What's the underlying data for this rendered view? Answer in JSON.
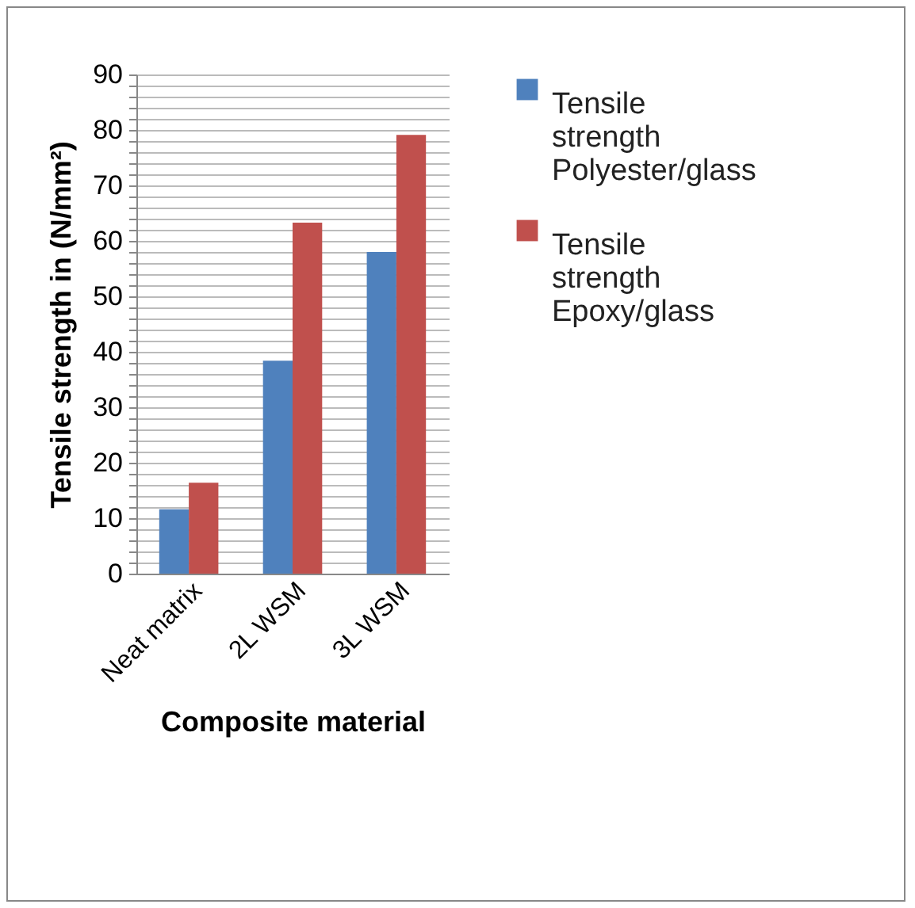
{
  "chart_data": {
    "type": "bar",
    "xlabel": "Composite material",
    "ylabel": "Tensile strength in (N/mm²)",
    "categories": [
      "Neat matrix",
      "2L WSM",
      "3L WSM"
    ],
    "series": [
      {
        "name": "Tensile strength Polyester/glass",
        "color": "#4f81bd",
        "values": [
          11.6,
          38.4,
          58
        ]
      },
      {
        "name": "Tensile strength Epoxy/glass",
        "color": "#c0504d",
        "values": [
          16.4,
          63.3,
          79.1
        ]
      }
    ],
    "ylim": [
      0,
      90
    ],
    "yticks": [
      0,
      {
        "value": 2,
        "label": null
      },
      {
        "value": 4,
        "label": null
      },
      {
        "value": 6,
        "label": null
      },
      {
        "value": 8,
        "label": null
      },
      10,
      {
        "value": 12,
        "label": null
      },
      {
        "value": 14,
        "label": null
      },
      {
        "value": 16,
        "label": null
      },
      {
        "value": 18,
        "label": null
      },
      20,
      {
        "value": 22,
        "label": null
      },
      {
        "value": 24,
        "label": null
      },
      {
        "value": 26,
        "label": null
      },
      {
        "value": 28,
        "label": null
      },
      30,
      {
        "value": 32,
        "label": null
      },
      {
        "value": 34,
        "label": null
      },
      {
        "value": 36,
        "label": null
      },
      {
        "value": 38,
        "label": null
      },
      40,
      {
        "value": 42,
        "label": null
      },
      {
        "value": 44,
        "label": null
      },
      {
        "value": 46,
        "label": null
      },
      {
        "value": 48,
        "label": null
      },
      50,
      {
        "value": 52,
        "label": null
      },
      {
        "value": 54,
        "label": null
      },
      {
        "value": 56,
        "label": null
      },
      {
        "value": 58,
        "label": null
      },
      60,
      {
        "value": 62,
        "label": null
      },
      {
        "value": 64,
        "label": null
      },
      {
        "value": 66,
        "label": null
      },
      {
        "value": 68,
        "label": null
      },
      70,
      {
        "value": 72,
        "label": null
      },
      {
        "value": 74,
        "label": null
      },
      {
        "value": 76,
        "label": null
      },
      {
        "value": 78,
        "label": null
      },
      80,
      {
        "value": 82,
        "label": null
      },
      {
        "value": 84,
        "label": null
      },
      {
        "value": 86,
        "label": null
      },
      {
        "value": 88,
        "label": null
      },
      90
    ],
    "grid": "y",
    "legend": "right"
  }
}
